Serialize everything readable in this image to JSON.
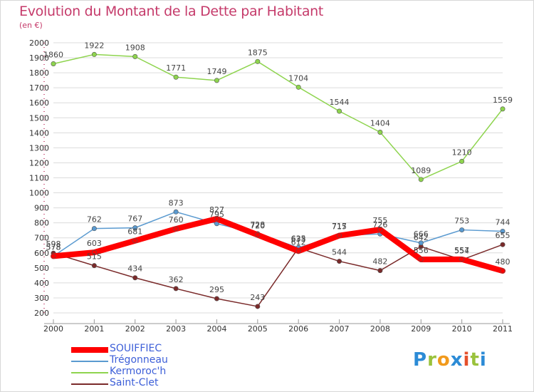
{
  "title": "Evolution du Montant de la Dette par Habitant",
  "unit": "(en €)",
  "brand": "Proxiti",
  "chart_data": {
    "type": "line",
    "categories": [
      "2000",
      "2001",
      "2002",
      "2003",
      "2004",
      "2005",
      "2006",
      "2007",
      "2008",
      "2009",
      "2010",
      "2011"
    ],
    "ylim": [
      200,
      2000
    ],
    "ytick_step": 100,
    "grid": "horizontal",
    "legend_position": "bottom-left",
    "series": [
      {
        "name": "SOUIFFIEC",
        "color": "#ff0000",
        "line_width": 8,
        "values": [
          578,
          603,
          681,
          760,
          827,
          720,
          612,
          715,
          755,
          556,
          557,
          480
        ],
        "labels": [
          578,
          603,
          681,
          760,
          827,
          720,
          612,
          715,
          755,
          556,
          557,
          480
        ]
      },
      {
        "name": "Trégonneau",
        "color": "#5a9ad0",
        "line_width": 1.5,
        "values": [
          578,
          762,
          767,
          873,
          795,
          728,
          635,
          717,
          726,
          666,
          753,
          744
        ],
        "labels": [
          578,
          762,
          767,
          873,
          795,
          728,
          635,
          717,
          726,
          666,
          753,
          744
        ]
      },
      {
        "name": "Kermoroc'h",
        "color": "#8ed44e",
        "line_width": 1.5,
        "values": [
          1860,
          1922,
          1908,
          1771,
          1749,
          1875,
          1704,
          1544,
          1404,
          1089,
          1210,
          1559
        ],
        "labels": [
          1860,
          1922,
          1908,
          1771,
          1749,
          1875,
          1704,
          1544,
          1404,
          1089,
          1210,
          1559
        ]
      },
      {
        "name": "Saint-Clet",
        "color": "#7a2a2a",
        "line_width": 1.5,
        "values": [
          598,
          515,
          434,
          362,
          295,
          243,
          633,
          544,
          482,
          642,
          554,
          655
        ],
        "labels": [
          598,
          515,
          434,
          362,
          295,
          243,
          633,
          544,
          482,
          642,
          554,
          655
        ]
      }
    ]
  }
}
